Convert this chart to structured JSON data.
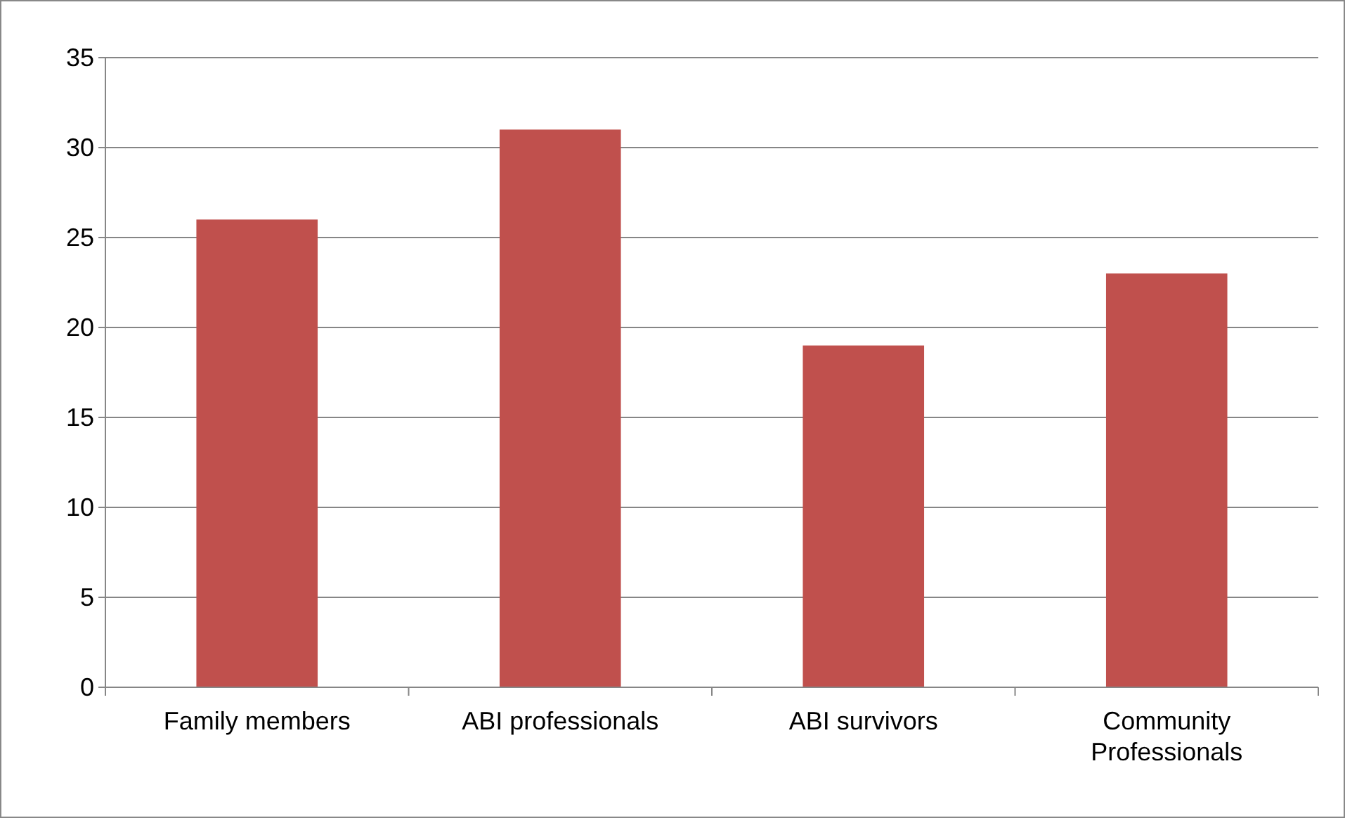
{
  "chart_data": {
    "type": "bar",
    "categories": [
      "Family members",
      "ABI professionals",
      "ABI survivors",
      "Community Professionals"
    ],
    "values": [
      26,
      31,
      19,
      23
    ],
    "color": "#c0504d",
    "ylim": [
      0,
      35
    ],
    "yticks": [
      0,
      5,
      10,
      15,
      20,
      25,
      30,
      35
    ],
    "grid": "y"
  }
}
